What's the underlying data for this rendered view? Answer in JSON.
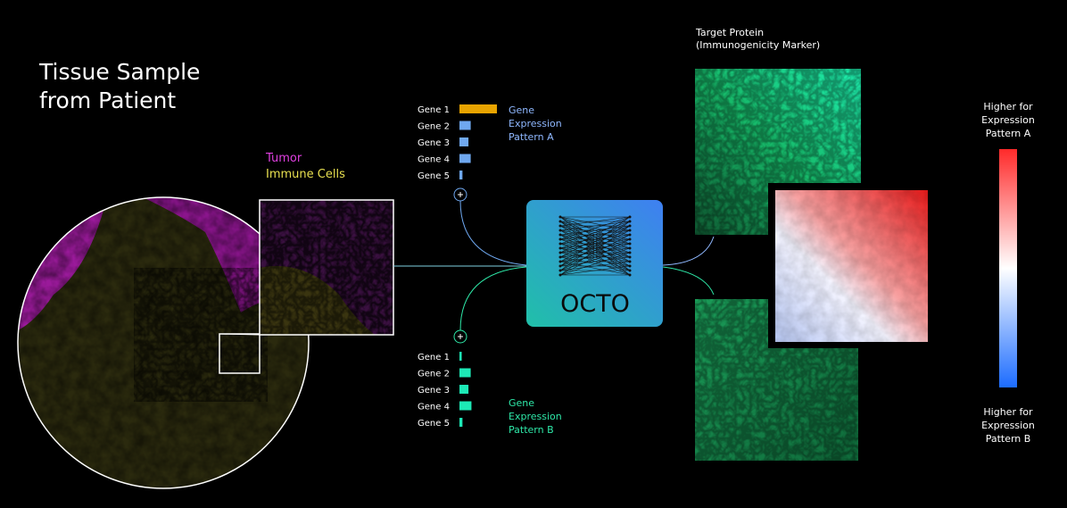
{
  "header": {
    "title": [
      "Tissue Sample",
      "from Patient"
    ]
  },
  "legend": {
    "tumor": "Tumor",
    "immune_cells": "Immune Cells"
  },
  "patterns": [
    {
      "label": [
        "Gene",
        "Expression",
        "Pattern A"
      ],
      "genes": [
        "Gene 1",
        "Gene 2",
        "Gene 3",
        "Gene 4",
        "Gene 5"
      ],
      "values": [
        1.0,
        0.3,
        0.24,
        0.3,
        0.08
      ],
      "colors": [
        "#e8a400",
        "#6fa8f0",
        "#6fa8f0",
        "#6fa8f0",
        "#6fa8f0"
      ],
      "label_color": "#8fb8ff"
    },
    {
      "label": [
        "Gene",
        "Expression",
        "Pattern B"
      ],
      "genes": [
        "Gene 1",
        "Gene 2",
        "Gene 3",
        "Gene 4",
        "Gene 5"
      ],
      "values": [
        0.06,
        0.3,
        0.24,
        0.32,
        0.08
      ],
      "colors": [
        "#1de9b6",
        "#1de9b6",
        "#1de9b6",
        "#1de9b6",
        "#1de9b6"
      ],
      "label_color": "#2ee8a8"
    }
  ],
  "model": {
    "name": "OCTO"
  },
  "target": {
    "title": [
      "Target Protein",
      "(Immunogenicity Marker)"
    ]
  },
  "colorbar": {
    "high": [
      "Higher for",
      "Expression",
      "Pattern A"
    ],
    "low": [
      "Higher for",
      "Expression",
      "Pattern B"
    ]
  }
}
